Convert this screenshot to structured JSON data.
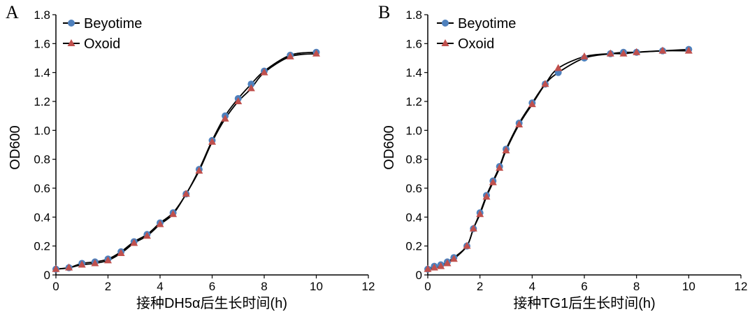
{
  "chart_data": [
    {
      "type": "line",
      "panel_label": "A",
      "xlabel": "接种DH5α后生长时间(h)",
      "ylabel": "OD600",
      "xlim": [
        0,
        12
      ],
      "ylim": [
        0,
        1.8
      ],
      "xticks": [
        0,
        2,
        4,
        6,
        8,
        10,
        12
      ],
      "yticks": [
        0,
        0.2,
        0.4,
        0.6,
        0.8,
        1.0,
        1.2,
        1.4,
        1.6,
        1.8
      ],
      "ytick_labels": [
        "0",
        "0.2",
        "0.4",
        "0.6",
        "0.8",
        "1.0",
        "1.2",
        "1.4",
        "1.6",
        "1.8"
      ],
      "legend_position": "top-left",
      "grid": false,
      "series": [
        {
          "name": "Beyotime",
          "marker": "circle",
          "color": "#4f81bd",
          "x": [
            0,
            0.5,
            1,
            1.5,
            2,
            2.5,
            3,
            3.5,
            4,
            4.5,
            5,
            5.5,
            6,
            6.5,
            7,
            7.5,
            8,
            9,
            10
          ],
          "y": [
            0.04,
            0.05,
            0.08,
            0.09,
            0.11,
            0.16,
            0.23,
            0.28,
            0.36,
            0.43,
            0.56,
            0.73,
            0.93,
            1.1,
            1.22,
            1.32,
            1.41,
            1.52,
            1.54
          ]
        },
        {
          "name": "Oxoid",
          "marker": "triangle",
          "color": "#c0504d",
          "x": [
            0,
            0.5,
            1,
            1.5,
            2,
            2.5,
            3,
            3.5,
            4,
            4.5,
            5,
            5.5,
            6,
            6.5,
            7,
            7.5,
            8,
            9,
            10
          ],
          "y": [
            0.04,
            0.05,
            0.07,
            0.08,
            0.1,
            0.15,
            0.22,
            0.27,
            0.35,
            0.42,
            0.56,
            0.72,
            0.92,
            1.08,
            1.2,
            1.29,
            1.4,
            1.51,
            1.53
          ]
        }
      ]
    },
    {
      "type": "line",
      "panel_label": "B",
      "xlabel": "接种TG1后生长时间(h)",
      "ylabel": "OD600",
      "xlim": [
        0,
        12
      ],
      "ylim": [
        0,
        1.8
      ],
      "xticks": [
        0,
        2,
        4,
        6,
        8,
        10,
        12
      ],
      "yticks": [
        0,
        0.2,
        0.4,
        0.6,
        0.8,
        1.0,
        1.2,
        1.4,
        1.6,
        1.8
      ],
      "ytick_labels": [
        "0",
        "0.2",
        "0.4",
        "0.6",
        "0.8",
        "1.0",
        "1.2",
        "1.4",
        "1.6",
        "1.8"
      ],
      "legend_position": "top-left",
      "grid": false,
      "series": [
        {
          "name": "Beyotime",
          "marker": "circle",
          "color": "#4f81bd",
          "x": [
            0,
            0.25,
            0.5,
            0.75,
            1,
            1.5,
            1.75,
            2,
            2.25,
            2.5,
            2.75,
            3,
            3.5,
            4,
            4.5,
            5,
            6,
            7,
            7.5,
            8,
            9,
            10
          ],
          "y": [
            0.04,
            0.06,
            0.07,
            0.09,
            0.12,
            0.2,
            0.32,
            0.43,
            0.55,
            0.65,
            0.75,
            0.87,
            1.05,
            1.19,
            1.32,
            1.4,
            1.5,
            1.53,
            1.54,
            1.54,
            1.55,
            1.56
          ]
        },
        {
          "name": "Oxoid",
          "marker": "triangle",
          "color": "#c0504d",
          "x": [
            0,
            0.25,
            0.5,
            0.75,
            1,
            1.5,
            1.75,
            2,
            2.25,
            2.5,
            2.75,
            3,
            3.5,
            4,
            4.5,
            5,
            6,
            7,
            7.5,
            8,
            9,
            10
          ],
          "y": [
            0.04,
            0.05,
            0.06,
            0.08,
            0.11,
            0.2,
            0.32,
            0.42,
            0.54,
            0.64,
            0.74,
            0.86,
            1.04,
            1.18,
            1.32,
            1.43,
            1.51,
            1.53,
            1.53,
            1.54,
            1.55,
            1.55
          ]
        }
      ]
    }
  ]
}
